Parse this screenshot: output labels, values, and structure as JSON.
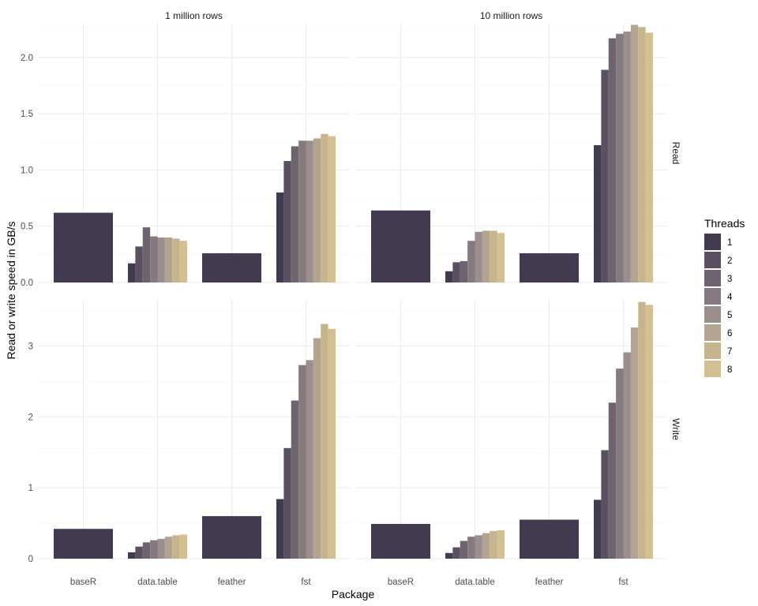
{
  "chart_data": {
    "type": "bar",
    "xlabel": "Package",
    "ylabel": "Read or write speed in GB/s",
    "categories": [
      "baseR",
      "data.table",
      "feather",
      "fst"
    ],
    "columns": [
      "1 million rows",
      "10 million rows"
    ],
    "rows": [
      "Read",
      "Write"
    ],
    "legend": {
      "title": "Threads",
      "placement": "right",
      "entries": [
        "1",
        "2",
        "3",
        "4",
        "5",
        "6",
        "7",
        "8"
      ],
      "colors": [
        "#423a4f",
        "#5a5062",
        "#6e6470",
        "#857a7f",
        "#9b8e8c",
        "#b3a391",
        "#c6b48d",
        "#d3bf92"
      ]
    },
    "rows_ylim": {
      "Read": [
        0,
        2.3
      ],
      "Write": [
        0,
        3.65
      ]
    },
    "rows_yticks": {
      "Read": [
        {
          "v": 0,
          "label": "0.0"
        },
        {
          "v": 0.5,
          "label": "0.5"
        },
        {
          "v": 1.0,
          "label": "1.0"
        },
        {
          "v": 1.5,
          "label": "1.5"
        },
        {
          "v": 2.0,
          "label": "2.0"
        }
      ],
      "Write": [
        {
          "v": 0,
          "label": "0"
        },
        {
          "v": 1,
          "label": "1"
        },
        {
          "v": 2,
          "label": "2"
        },
        {
          "v": 3,
          "label": "3"
        }
      ]
    },
    "panels": [
      {
        "column": "1 million rows",
        "row": "Read",
        "series": [
          {
            "category": "baseR",
            "threads": [
              "1"
            ],
            "values": [
              0.62
            ]
          },
          {
            "category": "data.table",
            "threads": [
              "1",
              "2",
              "3",
              "4",
              "5",
              "6",
              "7",
              "8"
            ],
            "values": [
              0.17,
              0.32,
              0.49,
              0.41,
              0.4,
              0.4,
              0.39,
              0.37
            ]
          },
          {
            "category": "feather",
            "threads": [
              "1"
            ],
            "values": [
              0.26
            ]
          },
          {
            "category": "fst",
            "threads": [
              "1",
              "2",
              "3",
              "4",
              "5",
              "6",
              "7",
              "8"
            ],
            "values": [
              0.8,
              1.08,
              1.21,
              1.26,
              1.26,
              1.28,
              1.32,
              1.3
            ]
          }
        ]
      },
      {
        "column": "10 million rows",
        "row": "Read",
        "series": [
          {
            "category": "baseR",
            "threads": [
              "1"
            ],
            "values": [
              0.64
            ]
          },
          {
            "category": "data.table",
            "threads": [
              "1",
              "2",
              "3",
              "4",
              "5",
              "6",
              "7",
              "8"
            ],
            "values": [
              0.1,
              0.18,
              0.19,
              0.37,
              0.45,
              0.46,
              0.46,
              0.44
            ]
          },
          {
            "category": "feather",
            "threads": [
              "1"
            ],
            "values": [
              0.26
            ]
          },
          {
            "category": "fst",
            "threads": [
              "1",
              "2",
              "3",
              "4",
              "5",
              "6",
              "7",
              "8"
            ],
            "values": [
              1.22,
              1.89,
              2.17,
              2.21,
              2.23,
              2.29,
              2.27,
              2.22
            ]
          }
        ]
      },
      {
        "column": "1 million rows",
        "row": "Write",
        "series": [
          {
            "category": "baseR",
            "threads": [
              "1"
            ],
            "values": [
              0.42
            ]
          },
          {
            "category": "data.table",
            "threads": [
              "1",
              "2",
              "3",
              "4",
              "5",
              "6",
              "7",
              "8"
            ],
            "values": [
              0.09,
              0.17,
              0.23,
              0.26,
              0.28,
              0.31,
              0.33,
              0.34
            ]
          },
          {
            "category": "feather",
            "threads": [
              "1"
            ],
            "values": [
              0.6
            ]
          },
          {
            "category": "fst",
            "threads": [
              "1",
              "2",
              "3",
              "4",
              "5",
              "6",
              "7",
              "8"
            ],
            "values": [
              0.84,
              1.56,
              2.23,
              2.73,
              2.8,
              3.11,
              3.31,
              3.24
            ]
          }
        ]
      },
      {
        "column": "10 million rows",
        "row": "Write",
        "series": [
          {
            "category": "baseR",
            "threads": [
              "1"
            ],
            "values": [
              0.49
            ]
          },
          {
            "category": "data.table",
            "threads": [
              "1",
              "2",
              "3",
              "4",
              "5",
              "6",
              "7",
              "8"
            ],
            "values": [
              0.08,
              0.16,
              0.25,
              0.31,
              0.33,
              0.36,
              0.39,
              0.4
            ]
          },
          {
            "category": "feather",
            "threads": [
              "1"
            ],
            "values": [
              0.55
            ]
          },
          {
            "category": "fst",
            "threads": [
              "1",
              "2",
              "3",
              "4",
              "5",
              "6",
              "7",
              "8"
            ],
            "values": [
              0.83,
              1.53,
              2.2,
              2.68,
              2.91,
              3.26,
              3.62,
              3.58
            ]
          }
        ]
      }
    ]
  }
}
